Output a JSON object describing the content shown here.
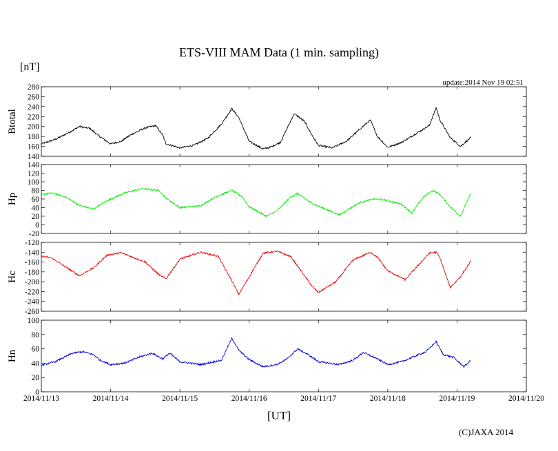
{
  "chart_data": {
    "type": "line",
    "title": "ETS-VIII MAM Data (1 min. sampling)",
    "unit_label": "[nT]",
    "update_text": "update:2014 Nov 19 02:51",
    "xlabel": "[UT]",
    "copyright": "(C)JAXA 2014",
    "x_ticks": [
      "2014/11/13",
      "2014/11/14",
      "2014/11/15",
      "2014/11/16",
      "2014/11/17",
      "2014/11/18",
      "2014/11/19",
      "2014/11/20"
    ],
    "xlim": [
      0,
      7
    ],
    "panels": [
      {
        "name": "Btotal",
        "color": "#000000",
        "ylim": [
          140,
          280
        ],
        "yticks": [
          140,
          160,
          180,
          200,
          220,
          240,
          260,
          280
        ],
        "x": [
          0.0,
          0.2,
          0.4,
          0.55,
          0.7,
          0.85,
          1.0,
          1.15,
          1.3,
          1.5,
          1.65,
          1.75,
          1.8,
          2.0,
          2.2,
          2.4,
          2.6,
          2.75,
          2.85,
          3.0,
          3.2,
          3.3,
          3.45,
          3.55,
          3.65,
          3.8,
          3.9,
          4.0,
          4.2,
          4.4,
          4.6,
          4.75,
          4.85,
          5.0,
          5.2,
          5.4,
          5.6,
          5.7,
          5.75,
          5.9,
          6.05,
          6.2
        ],
        "values": [
          165,
          174,
          188,
          200,
          196,
          179,
          165,
          170,
          184,
          197,
          202,
          183,
          165,
          157,
          162,
          176,
          205,
          236,
          218,
          170,
          155,
          158,
          168,
          197,
          226,
          210,
          184,
          162,
          157,
          170,
          195,
          213,
          180,
          158,
          168,
          185,
          202,
          238,
          214,
          178,
          160,
          178
        ]
      },
      {
        "name": "Hp",
        "color": "#00ee00",
        "ylim": [
          -20,
          140
        ],
        "yticks": [
          -20,
          0,
          20,
          40,
          60,
          80,
          100,
          120,
          140
        ],
        "x": [
          0.0,
          0.15,
          0.35,
          0.55,
          0.75,
          0.95,
          1.2,
          1.45,
          1.7,
          1.8,
          2.0,
          2.3,
          2.5,
          2.75,
          2.9,
          3.0,
          3.25,
          3.4,
          3.6,
          3.7,
          3.9,
          4.05,
          4.3,
          4.6,
          4.8,
          4.95,
          5.2,
          5.35,
          5.5,
          5.65,
          5.75,
          5.9,
          6.05,
          6.2
        ],
        "values": [
          70,
          74,
          65,
          45,
          37,
          56,
          74,
          84,
          80,
          62,
          40,
          44,
          64,
          80,
          65,
          42,
          20,
          32,
          65,
          73,
          50,
          40,
          23,
          52,
          60,
          58,
          48,
          27,
          62,
          80,
          71,
          42,
          20,
          74
        ]
      },
      {
        "name": "Hc",
        "color": "#ee0000",
        "ylim": [
          -260,
          -120
        ],
        "yticks": [
          -260,
          -240,
          -220,
          -200,
          -180,
          -160,
          -140,
          -120
        ],
        "x": [
          0.0,
          0.15,
          0.35,
          0.55,
          0.75,
          0.95,
          1.15,
          1.5,
          1.7,
          1.8,
          2.0,
          2.3,
          2.55,
          2.75,
          2.85,
          3.0,
          3.2,
          3.4,
          3.6,
          3.75,
          3.9,
          4.0,
          4.25,
          4.5,
          4.75,
          4.85,
          5.0,
          5.25,
          5.45,
          5.6,
          5.7,
          5.75,
          5.9,
          6.05,
          6.2
        ],
        "values": [
          -148,
          -152,
          -170,
          -188,
          -172,
          -146,
          -141,
          -160,
          -186,
          -194,
          -154,
          -140,
          -148,
          -198,
          -226,
          -190,
          -142,
          -138,
          -149,
          -178,
          -208,
          -222,
          -200,
          -156,
          -140,
          -150,
          -178,
          -196,
          -165,
          -142,
          -140,
          -150,
          -212,
          -190,
          -158
        ]
      },
      {
        "name": "Hn",
        "color": "#0000dd",
        "ylim": [
          0,
          100
        ],
        "yticks": [
          0,
          20,
          40,
          60,
          80,
          100
        ],
        "x": [
          0.0,
          0.2,
          0.45,
          0.6,
          0.75,
          0.85,
          1.0,
          1.2,
          1.4,
          1.6,
          1.75,
          1.85,
          2.0,
          2.3,
          2.6,
          2.75,
          2.85,
          3.0,
          3.2,
          3.4,
          3.55,
          3.7,
          3.85,
          4.0,
          4.3,
          4.5,
          4.65,
          4.85,
          5.0,
          5.2,
          5.4,
          5.55,
          5.7,
          5.8,
          5.95,
          6.1,
          6.2
        ],
        "values": [
          37,
          42,
          54,
          56,
          52,
          44,
          38,
          40,
          48,
          54,
          46,
          54,
          42,
          38,
          44,
          75,
          58,
          45,
          35,
          38,
          46,
          60,
          52,
          42,
          38,
          44,
          55,
          46,
          38,
          42,
          50,
          56,
          70,
          52,
          48,
          35,
          44
        ]
      }
    ]
  }
}
